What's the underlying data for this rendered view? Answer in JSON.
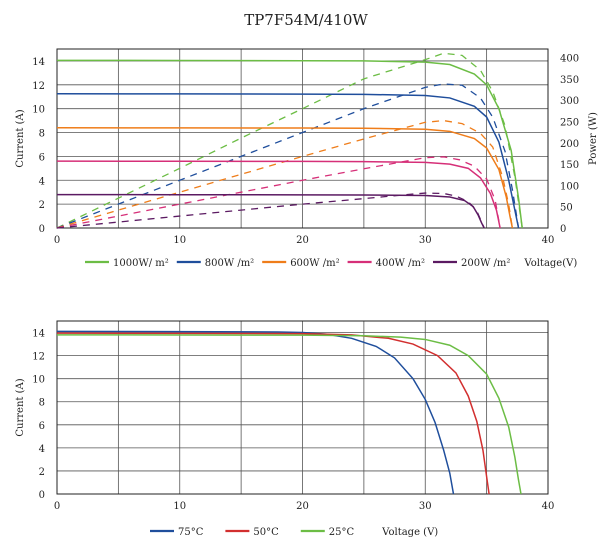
{
  "title": "TP7F54M/410W",
  "chart_data": [
    {
      "type": "line",
      "xlabel": "Voltage(V)",
      "ylabel": "Current (A)",
      "y2label": "Power (W)",
      "xlim": [
        0,
        40
      ],
      "ylim": [
        0,
        15
      ],
      "y2lim": [
        0,
        420
      ],
      "xticks": [
        "0",
        "10",
        "20",
        "30",
        "40"
      ],
      "yticks": [
        "0",
        "2",
        "4",
        "6",
        "8",
        "10",
        "12",
        "14"
      ],
      "y2ticks": [
        "0",
        "50",
        "100",
        "150",
        "200",
        "250",
        "300",
        "350",
        "400"
      ],
      "grid": true,
      "legend_position": "bottom",
      "series": [
        {
          "name": "1000W/ m²",
          "color": "#6cbd45",
          "iv": [
            [
              0,
              14.05
            ],
            [
              10,
              14.04
            ],
            [
              20,
              14.02
            ],
            [
              25,
              14.0
            ],
            [
              30,
              13.9
            ],
            [
              32,
              13.7
            ],
            [
              34,
              12.9
            ],
            [
              35,
              12.0
            ],
            [
              36,
              10.0
            ],
            [
              37,
              6.5
            ],
            [
              37.6,
              2.5
            ],
            [
              37.9,
              0
            ]
          ],
          "pv": [
            [
              0,
              0
            ],
            [
              5,
              70
            ],
            [
              10,
              140
            ],
            [
              15,
              211
            ],
            [
              20,
              280
            ],
            [
              25,
              350
            ],
            [
              30,
              395
            ],
            [
              31.5,
              410
            ],
            [
              33,
              405
            ],
            [
              34.5,
              370
            ],
            [
              35.5,
              320
            ],
            [
              36.5,
              240
            ],
            [
              37.3,
              120
            ],
            [
              37.9,
              0
            ]
          ]
        },
        {
          "name": "800W /m²",
          "color": "#1f4e9c",
          "iv": [
            [
              0,
              11.25
            ],
            [
              10,
              11.24
            ],
            [
              20,
              11.22
            ],
            [
              25,
              11.2
            ],
            [
              30,
              11.1
            ],
            [
              32,
              10.9
            ],
            [
              34,
              10.2
            ],
            [
              35,
              9.3
            ],
            [
              36,
              7.2
            ],
            [
              36.8,
              4.0
            ],
            [
              37.3,
              1.5
            ],
            [
              37.6,
              0
            ]
          ],
          "pv": [
            [
              0,
              0
            ],
            [
              5,
              56
            ],
            [
              10,
              112
            ],
            [
              15,
              168
            ],
            [
              20,
              224
            ],
            [
              25,
              280
            ],
            [
              30,
              330
            ],
            [
              31.5,
              338
            ],
            [
              33,
              335
            ],
            [
              34.5,
              305
            ],
            [
              35.5,
              260
            ],
            [
              36.5,
              180
            ],
            [
              37.1,
              90
            ],
            [
              37.6,
              0
            ]
          ]
        },
        {
          "name": "600W /m²",
          "color": "#ef7d1a",
          "iv": [
            [
              0,
              8.4
            ],
            [
              10,
              8.39
            ],
            [
              20,
              8.38
            ],
            [
              25,
              8.36
            ],
            [
              30,
              8.28
            ],
            [
              32,
              8.1
            ],
            [
              34,
              7.5
            ],
            [
              35,
              6.7
            ],
            [
              36,
              4.9
            ],
            [
              36.6,
              2.6
            ],
            [
              36.9,
              1.0
            ],
            [
              37.1,
              0
            ]
          ],
          "pv": [
            [
              0,
              0
            ],
            [
              5,
              42
            ],
            [
              10,
              84
            ],
            [
              15,
              126
            ],
            [
              20,
              168
            ],
            [
              25,
              209
            ],
            [
              30,
              248
            ],
            [
              31.5,
              252
            ],
            [
              33,
              245
            ],
            [
              34.5,
              222
            ],
            [
              35.5,
              190
            ],
            [
              36.3,
              120
            ],
            [
              36.8,
              55
            ],
            [
              37.1,
              0
            ]
          ]
        },
        {
          "name": "400W /m²",
          "color": "#d62f78",
          "iv": [
            [
              0,
              5.6
            ],
            [
              10,
              5.59
            ],
            [
              20,
              5.58
            ],
            [
              25,
              5.56
            ],
            [
              30,
              5.5
            ],
            [
              32,
              5.35
            ],
            [
              33.5,
              5.0
            ],
            [
              34.5,
              4.2
            ],
            [
              35.3,
              2.9
            ],
            [
              35.8,
              1.5
            ],
            [
              36.1,
              0
            ]
          ],
          "pv": [
            [
              0,
              0
            ],
            [
              5,
              28
            ],
            [
              10,
              56
            ],
            [
              15,
              84
            ],
            [
              20,
              112
            ],
            [
              25,
              139
            ],
            [
              30,
              165
            ],
            [
              31.5,
              167
            ],
            [
              32.8,
              160
            ],
            [
              34,
              145
            ],
            [
              35,
              115
            ],
            [
              35.7,
              65
            ],
            [
              36.1,
              0
            ]
          ]
        },
        {
          "name": "200W /m²",
          "color": "#5b1a62",
          "iv": [
            [
              0,
              2.8
            ],
            [
              10,
              2.79
            ],
            [
              20,
              2.78
            ],
            [
              25,
              2.77
            ],
            [
              30,
              2.72
            ],
            [
              32,
              2.6
            ],
            [
              33.2,
              2.3
            ],
            [
              33.9,
              1.8
            ],
            [
              34.3,
              1.1
            ],
            [
              34.6,
              0.4
            ],
            [
              34.8,
              0
            ]
          ],
          "pv": [
            [
              0,
              0
            ],
            [
              5,
              14
            ],
            [
              10,
              28
            ],
            [
              15,
              42
            ],
            [
              20,
              56
            ],
            [
              25,
              69
            ],
            [
              28,
              77
            ],
            [
              30,
              82
            ],
            [
              31.5,
              81
            ],
            [
              32.5,
              75
            ],
            [
              33.5,
              62
            ],
            [
              34.2,
              40
            ],
            [
              34.8,
              0
            ]
          ]
        }
      ]
    },
    {
      "type": "line",
      "xlabel": "Voltage (V)",
      "ylabel": "Current (A)",
      "xlim": [
        0,
        40
      ],
      "ylim": [
        0,
        15
      ],
      "xticks": [
        "0",
        "10",
        "20",
        "30",
        "40"
      ],
      "yticks": [
        "0",
        "2",
        "4",
        "6",
        "8",
        "10",
        "12",
        "14"
      ],
      "grid": true,
      "legend_position": "bottom",
      "series": [
        {
          "name": "75°C",
          "color": "#1f4e9c",
          "iv": [
            [
              0,
              14.1
            ],
            [
              10,
              14.08
            ],
            [
              18,
              14.05
            ],
            [
              20,
              14.0
            ],
            [
              22,
              13.85
            ],
            [
              24,
              13.5
            ],
            [
              26,
              12.8
            ],
            [
              27.5,
              11.8
            ],
            [
              29,
              10.0
            ],
            [
              30,
              8.2
            ],
            [
              30.8,
              6.2
            ],
            [
              31.5,
              3.8
            ],
            [
              32,
              1.8
            ],
            [
              32.3,
              0
            ]
          ]
        },
        {
          "name": "50°C",
          "color": "#d22f2f",
          "iv": [
            [
              0,
              13.95
            ],
            [
              10,
              13.93
            ],
            [
              20,
              13.9
            ],
            [
              24,
              13.8
            ],
            [
              27,
              13.5
            ],
            [
              29,
              13.0
            ],
            [
              31,
              12.0
            ],
            [
              32.5,
              10.5
            ],
            [
              33.5,
              8.5
            ],
            [
              34.2,
              6.3
            ],
            [
              34.7,
              3.8
            ],
            [
              35,
              1.5
            ],
            [
              35.2,
              0
            ]
          ]
        },
        {
          "name": "25°C",
          "color": "#6cbd45",
          "iv": [
            [
              0,
              13.8
            ],
            [
              10,
              13.79
            ],
            [
              20,
              13.77
            ],
            [
              25,
              13.72
            ],
            [
              28,
              13.6
            ],
            [
              30,
              13.4
            ],
            [
              32,
              12.9
            ],
            [
              33.5,
              12.0
            ],
            [
              35,
              10.4
            ],
            [
              36,
              8.3
            ],
            [
              36.8,
              5.8
            ],
            [
              37.3,
              3.2
            ],
            [
              37.6,
              1.2
            ],
            [
              37.8,
              0
            ]
          ]
        }
      ]
    }
  ]
}
